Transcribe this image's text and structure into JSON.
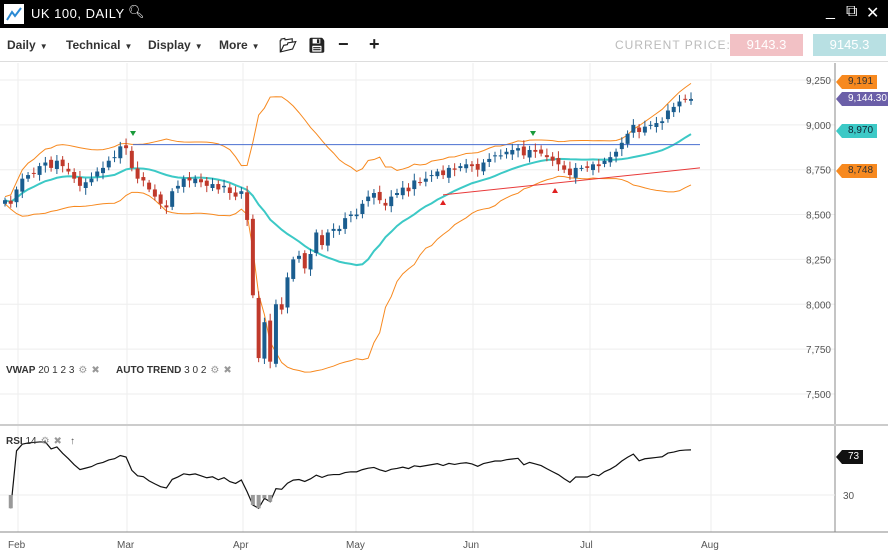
{
  "window": {
    "title": "UK 100, DAILY",
    "search_icon": "magnifier-icon",
    "minimize": "_",
    "popout": "popout-icon",
    "close": "close-icon"
  },
  "toolbar": {
    "menus": [
      "Daily",
      "Technical",
      "Display",
      "More"
    ],
    "current_price_label": "CURRENT PRICE:",
    "bid": "9143.3",
    "ask": "9145.3",
    "bid_color": "#f2c1c5",
    "ask_color": "#b8e0e3"
  },
  "indicators": {
    "vwap": {
      "name": "VWAP",
      "params": "20 1 2 3"
    },
    "auto_trend": {
      "name": "AUTO TREND",
      "params": "3 0 2"
    },
    "rsi": {
      "name": "RSI",
      "params": "14"
    }
  },
  "price_tags": [
    {
      "value": "9,191",
      "color": "#f7891f"
    },
    {
      "value": "9,144.30",
      "color": "#6b5fa8"
    },
    {
      "value": "8,970",
      "color": "#3cc9c6"
    },
    {
      "value": "8,748",
      "color": "#f7891f"
    }
  ],
  "rsi_tag": "73",
  "chart_data": {
    "type": "candlestick",
    "y_ticks": [
      9250,
      9000,
      8750,
      8500,
      8250,
      8000,
      7750,
      7500
    ],
    "y_tick_labels": [
      "9,250",
      "9,000",
      "8,750",
      "8,500",
      "8,250",
      "8,000",
      "7,750",
      "7,500"
    ],
    "ylim": [
      7420,
      9300
    ],
    "x_labels": [
      "Feb",
      "Mar",
      "Apr",
      "May",
      "Jun",
      "Jul",
      "Aug"
    ],
    "rsi_ticks": [
      30
    ],
    "closes": [
      8580,
      8560,
      8640,
      8700,
      8720,
      8730,
      8770,
      8790,
      8760,
      8800,
      8770,
      8740,
      8700,
      8660,
      8680,
      8700,
      8740,
      8760,
      8800,
      8820,
      8880,
      8870,
      8760,
      8700,
      8690,
      8640,
      8600,
      8560,
      8540,
      8630,
      8660,
      8700,
      8690,
      8700,
      8680,
      8660,
      8670,
      8640,
      8660,
      8620,
      8600,
      8630,
      8470,
      8050,
      7700,
      7900,
      7680,
      8000,
      7970,
      8150,
      8250,
      8270,
      8200,
      8280,
      8400,
      8330,
      8400,
      8420,
      8420,
      8480,
      8500,
      8500,
      8560,
      8600,
      8620,
      8580,
      8550,
      8600,
      8620,
      8650,
      8630,
      8690,
      8680,
      8700,
      8720,
      8740,
      8720,
      8760,
      8750,
      8770,
      8780,
      8770,
      8750,
      8790,
      8810,
      8830,
      8830,
      8850,
      8860,
      8870,
      8830,
      8860,
      8850,
      8840,
      8820,
      8800,
      8780,
      8750,
      8720,
      8760,
      8760,
      8760,
      8780,
      8770,
      8800,
      8820,
      8850,
      8900,
      8950,
      9000,
      8960,
      8990,
      9000,
      9010,
      9020,
      9080,
      9100,
      9130,
      9140,
      9144
    ],
    "resistance_level": 8890,
    "support_line": [
      8610,
      8760
    ],
    "colors": {
      "up": "#1a5d8f",
      "down": "#c0392b",
      "bands": "#f7891f",
      "ma": "#3cc9c6",
      "resistance": "#4a6fd0",
      "support": "#e83a3a"
    }
  }
}
